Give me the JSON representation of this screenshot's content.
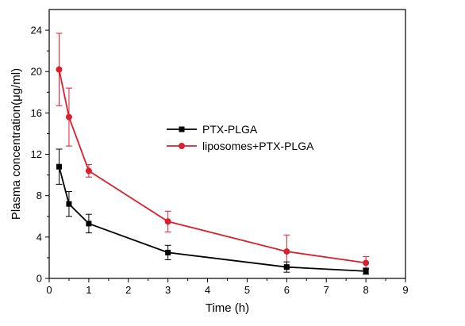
{
  "chart_data": {
    "type": "line",
    "xlabel": "Time (h)",
    "ylabel": "Plasma concentration(μg/ml)",
    "xlim": [
      0,
      9
    ],
    "ylim": [
      0,
      26
    ],
    "xticks": [
      "0",
      "1",
      "2",
      "3",
      "4",
      "5",
      "6",
      "7",
      "8",
      "9"
    ],
    "yticks": [
      "0",
      "4",
      "8",
      "12",
      "16",
      "20",
      "24"
    ],
    "grid": false,
    "legend_position": "center-right",
    "series": [
      {
        "name": "PTX-PLGA",
        "color": "#000000",
        "marker": "square",
        "x": [
          0.25,
          0.5,
          1,
          3,
          6,
          8
        ],
        "y": [
          10.8,
          7.2,
          5.3,
          2.5,
          1.1,
          0.7
        ],
        "err": [
          1.7,
          1.2,
          0.9,
          0.7,
          0.5,
          0.3
        ]
      },
      {
        "name": "liposomes+PTX-PLGA",
        "color": "#d8202e",
        "marker": "circle",
        "x": [
          0.25,
          0.5,
          1,
          3,
          6,
          8
        ],
        "y": [
          20.2,
          15.6,
          10.4,
          5.5,
          2.6,
          1.5
        ],
        "err": [
          3.5,
          2.8,
          0.6,
          1.0,
          1.6,
          0.6
        ]
      }
    ]
  }
}
